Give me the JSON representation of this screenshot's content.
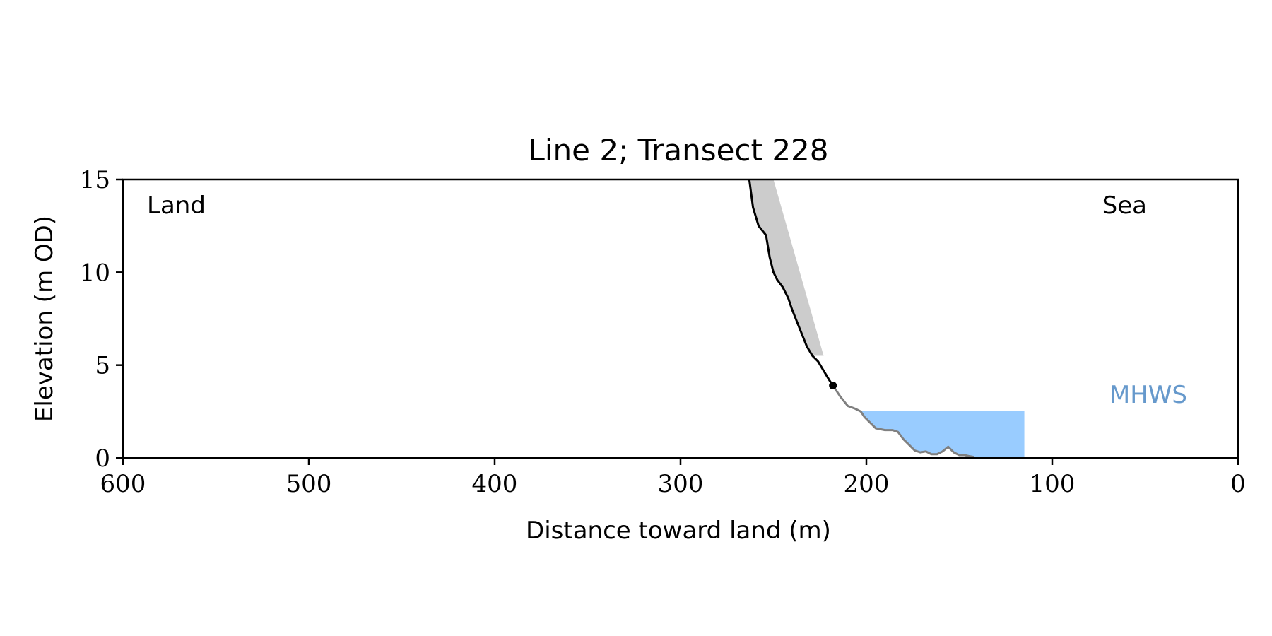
{
  "chart_data": {
    "type": "line",
    "title": "Line 2; Transect 228",
    "xlabel": "Distance toward land (m)",
    "ylabel": "Elevation (m OD)",
    "xlim": [
      600,
      0
    ],
    "ylim": [
      0,
      15
    ],
    "x_ticks": [
      600,
      500,
      400,
      300,
      200,
      100,
      0
    ],
    "y_ticks": [
      0,
      5,
      10,
      15
    ],
    "grid": false,
    "annotations": {
      "land": "Land",
      "sea": "Sea",
      "mhws": "MHWS"
    },
    "mhws": {
      "elevation": 2.55,
      "x_start": 203,
      "x_end": 115
    },
    "cliff_profile": {
      "x": [
        263,
        261,
        258,
        254,
        252,
        250,
        248,
        245,
        242,
        240,
        238,
        236,
        234,
        232,
        229,
        226,
        223,
        220,
        218
      ],
      "y": [
        15,
        13.5,
        12.5,
        12.0,
        10.8,
        10.0,
        9.6,
        9.2,
        8.6,
        8.0,
        7.5,
        7.0,
        6.5,
        6.0,
        5.5,
        5.2,
        4.7,
        4.2,
        3.9
      ]
    },
    "beach_profile": {
      "x": [
        218,
        214,
        210,
        206,
        203,
        201,
        198,
        195,
        190,
        186,
        183,
        180,
        177,
        174,
        171,
        168,
        165,
        162,
        159,
        156,
        153,
        150,
        147,
        145,
        142
      ],
      "y": [
        3.9,
        3.3,
        2.8,
        2.65,
        2.5,
        2.2,
        1.9,
        1.6,
        1.5,
        1.5,
        1.4,
        1.0,
        0.7,
        0.4,
        0.3,
        0.35,
        0.2,
        0.2,
        0.35,
        0.6,
        0.3,
        0.15,
        0.15,
        0.1,
        0.05
      ]
    },
    "toe_point": {
      "x": 218,
      "y": 3.9
    },
    "shaded_region": {
      "x": [
        250,
        223
      ],
      "y": [
        15,
        5.5
      ]
    },
    "colors": {
      "cliff_line": "#000000",
      "beach_line": "#808080",
      "shade": "#cccccc",
      "mhws_fill": "#99ccff",
      "mhws_text": "#6699cc"
    }
  }
}
